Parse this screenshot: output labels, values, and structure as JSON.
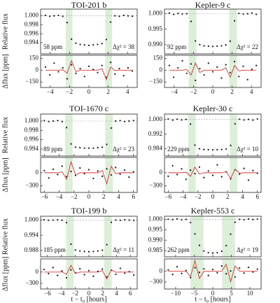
{
  "chart_data": [
    {
      "type": "transit",
      "title": "TOI-201 b",
      "ylabel": "Relative flux",
      "resid_ylabel": "Δflux [ppm]",
      "annotation_ppm": "58 ppm",
      "annotation_chi": "Δχ² = 38",
      "xlim": [
        -5,
        5
      ],
      "xticks": [
        {
          "value": -4,
          "label": "−4"
        },
        {
          "value": -2,
          "label": "−2"
        },
        0,
        2,
        4
      ],
      "ylim": [
        0.9915,
        1.0015
      ],
      "yticks": [
        {
          "value": 1,
          "label": "1.000"
        },
        0.998,
        0.996,
        0.994
      ],
      "resid_ylim": [
        -220,
        190
      ],
      "resid_yticks": [
        {
          "value": -150,
          "label": "−150"
        },
        0,
        150
      ],
      "shade": [
        [
          -2.4,
          -1.7
        ],
        [
          1.7,
          2.4
        ]
      ],
      "x": [
        -4.5,
        -4.05,
        -3.6,
        -3.15,
        -2.7,
        -2.25,
        -1.8,
        -1.35,
        -0.9,
        -0.45,
        0,
        0.45,
        0.9,
        1.35,
        1.8,
        2.25,
        2.7,
        3.15,
        3.6,
        4.05,
        4.5
      ],
      "flux": [
        1.0001,
        0.9999,
        1.0,
        1.0001,
        0.9999,
        0.9985,
        0.9948,
        0.9939,
        0.9936,
        0.9935,
        0.9934,
        0.9935,
        0.9936,
        0.9938,
        0.9947,
        0.9986,
        1.0,
        0.9999,
        1.0001,
        1.0,
        0.9999
      ],
      "residual": [
        40,
        -60,
        90,
        -20,
        30,
        -110,
        70,
        -40,
        20,
        -80,
        50,
        10,
        -30,
        60,
        -90,
        100,
        -50,
        20,
        -70,
        30,
        -10
      ],
      "model": [
        0,
        0,
        0,
        0,
        5,
        -40,
        120,
        -20,
        0,
        0,
        0,
        0,
        0,
        20,
        -120,
        40,
        -5,
        0,
        0,
        0,
        0
      ]
    },
    {
      "type": "transit",
      "title": "Kepler-9 c",
      "annotation_ppm": "92 ppm",
      "annotation_chi": "Δχ² = 22",
      "xlim": [
        -5,
        5
      ],
      "xticks": [
        {
          "value": -4,
          "label": "−4"
        },
        {
          "value": -2,
          "label": "−2"
        },
        0,
        2,
        4
      ],
      "ylim": [
        0.987,
        1.0015
      ],
      "yticks": [
        {
          "value": 1,
          "label": "1.000"
        },
        0.995,
        {
          "value": 0.99,
          "label": "0.990"
        }
      ],
      "resid_ylim": [
        -220,
        190
      ],
      "resid_yticks": [
        {
          "value": -150,
          "label": "−150"
        },
        0,
        150
      ],
      "shade": [
        [
          -2.5,
          -1.7
        ],
        [
          1.7,
          2.5
        ]
      ],
      "x": [
        -4.5,
        -4.05,
        -3.6,
        -3.15,
        -2.7,
        -2.25,
        -1.8,
        -1.35,
        -0.9,
        -0.45,
        0,
        0.45,
        0.9,
        1.35,
        1.8,
        2.25,
        2.7,
        3.15,
        3.6,
        4.05,
        4.5
      ],
      "flux": [
        1.0002,
        0.9998,
        1.0001,
        0.9999,
        1.0,
        0.9975,
        0.9912,
        0.99,
        0.9896,
        0.9895,
        0.9894,
        0.9895,
        0.9896,
        0.9899,
        0.9911,
        0.9977,
        1.0001,
        0.9999,
        1.0,
        1.0002,
        0.9998
      ],
      "residual": [
        60,
        -90,
        30,
        120,
        -40,
        80,
        -130,
        20,
        -60,
        90,
        -20,
        40,
        -100,
        70,
        -30,
        110,
        -80,
        50,
        -120,
        10,
        60
      ],
      "model": [
        0,
        0,
        0,
        0,
        10,
        -60,
        90,
        -30,
        0,
        0,
        0,
        0,
        0,
        30,
        -90,
        60,
        -10,
        0,
        0,
        0,
        0
      ]
    },
    {
      "type": "transit",
      "title": "TOI-1670 c",
      "ylabel": "Relative flux",
      "resid_ylabel": "Δflux [ppm]",
      "annotation_ppm": "89 ppm",
      "annotation_chi": "Δχ² = 23",
      "xlim": [
        -6.5,
        6.5
      ],
      "xticks": [
        {
          "value": -6,
          "label": "−6"
        },
        {
          "value": -4,
          "label": "−4"
        },
        {
          "value": -2,
          "label": "−2"
        },
        0,
        2,
        4,
        6
      ],
      "ylim": [
        0.9925,
        1.0015
      ],
      "yticks": [
        {
          "value": 1,
          "label": "1.000"
        },
        0.998,
        0.996,
        0.994
      ],
      "resid_ylim": [
        -450,
        350
      ],
      "resid_yticks": [
        {
          "value": -300,
          "label": "−300"
        },
        0
      ],
      "shade": [
        [
          -3.2,
          -2.2
        ],
        [
          2.2,
          3.2
        ]
      ],
      "x": [
        -6,
        -5.4,
        -4.8,
        -4.2,
        -3.6,
        -3,
        -2.4,
        -1.8,
        -1.2,
        -0.6,
        0,
        0.6,
        1.2,
        1.8,
        2.4,
        3,
        3.6,
        4.2,
        4.8,
        5.4,
        6
      ],
      "flux": [
        1.0001,
        0.9999,
        1.0,
        1.0001,
        0.9999,
        0.9986,
        0.9951,
        0.9944,
        0.9943,
        0.9942,
        0.9942,
        0.9942,
        0.9943,
        0.9944,
        0.995,
        0.9985,
        1.0,
        1.0001,
        0.9999,
        1.0,
        1.0001
      ],
      "residual": [
        50,
        -120,
        80,
        -40,
        150,
        -90,
        30,
        -60,
        110,
        -20,
        70,
        -130,
        40,
        -80,
        90,
        -50,
        120,
        -30,
        60,
        -100,
        20
      ],
      "model": [
        0,
        0,
        0,
        0,
        20,
        -150,
        250,
        -50,
        0,
        0,
        0,
        0,
        0,
        50,
        -250,
        150,
        -20,
        0,
        0,
        0,
        0
      ]
    },
    {
      "type": "transit",
      "title": "Kepler-30 c",
      "annotation_ppm": "229 ppm",
      "annotation_chi": "Δχ² = 10",
      "xlim": [
        -6.5,
        6.5
      ],
      "xticks": [
        {
          "value": -6,
          "label": "−6"
        },
        {
          "value": -4,
          "label": "−4"
        },
        {
          "value": -2,
          "label": "−2"
        },
        0,
        2,
        4,
        6
      ],
      "ylim": [
        0.98,
        1.003
      ],
      "yticks": [
        {
          "value": 1,
          "label": "1.000"
        },
        0.992,
        0.984
      ],
      "resid_ylim": [
        -450,
        350
      ],
      "resid_yticks": [
        {
          "value": -300,
          "label": "−300"
        },
        0
      ],
      "shade": [
        [
          -3.3,
          -2.3
        ],
        [
          2.3,
          3.3
        ]
      ],
      "x": [
        -6,
        -5.4,
        -4.8,
        -4.2,
        -3.6,
        -3,
        -2.4,
        -1.8,
        -1.2,
        -0.6,
        0,
        0.6,
        1.2,
        1.8,
        2.4,
        3,
        3.6,
        4.2,
        4.8,
        5.4,
        6
      ],
      "flux": [
        1.0003,
        0.9997,
        1.0002,
        0.9998,
        1.0001,
        0.9975,
        0.986,
        0.984,
        0.9836,
        0.9835,
        0.9834,
        0.9835,
        0.9836,
        0.9839,
        0.9858,
        0.9977,
        1.0002,
        0.9998,
        1.0001,
        0.9997,
        1.0003
      ],
      "residual": [
        -80,
        160,
        -40,
        90,
        -150,
        60,
        -20,
        130,
        -110,
        40,
        -60,
        180,
        -90,
        20,
        -140,
        70,
        -30,
        100,
        -170,
        50,
        -10
      ],
      "model": [
        0,
        0,
        0,
        0,
        10,
        -80,
        130,
        -30,
        0,
        0,
        0,
        0,
        0,
        30,
        -130,
        80,
        -10,
        0,
        0,
        0,
        0
      ]
    },
    {
      "type": "transit",
      "title": "TOI-199 b",
      "ylabel": "Relative flux",
      "resid_ylabel": "Δflux [ppm]",
      "xlabel": "t − t₀ [hours]",
      "annotation_ppm": "185 ppm",
      "annotation_chi": "Δχ² = 11",
      "xlim": [
        -7,
        7
      ],
      "xticks": [
        {
          "value": -6,
          "label": "−6"
        },
        {
          "value": -4,
          "label": "−4"
        },
        {
          "value": -2,
          "label": "−2"
        },
        0,
        2,
        4,
        6
      ],
      "ylim": [
        0.9855,
        1.0015
      ],
      "yticks": [
        {
          "value": 1,
          "label": "1.000"
        },
        0.994,
        0.988
      ],
      "resid_ylim": [
        -450,
        350
      ],
      "resid_yticks": [
        {
          "value": -300,
          "label": "−300"
        },
        0
      ],
      "shade": [
        [
          -3.3,
          -2.2
        ],
        [
          2.2,
          3.3
        ]
      ],
      "x": [
        -6.5,
        -5.85,
        -5.2,
        -4.55,
        -3.9,
        -3.25,
        -2.6,
        -1.95,
        -1.3,
        -0.65,
        0,
        0.65,
        1.3,
        1.95,
        2.6,
        3.25,
        3.9,
        4.55,
        5.2,
        5.85,
        6.5
      ],
      "flux": [
        1.0001,
        0.9999,
        1.0,
        1.0001,
        0.9999,
        0.999,
        0.9905,
        0.9882,
        0.9878,
        0.9876,
        0.9875,
        0.9876,
        0.9878,
        0.9881,
        0.9903,
        0.9991,
        1.0,
        0.9999,
        1.0001,
        1.0,
        0.9999
      ],
      "residual": [
        70,
        -40,
        120,
        -90,
        30,
        -150,
        60,
        -20,
        90,
        -70,
        40,
        -110,
        20,
        80,
        -130,
        50,
        -60,
        100,
        -30,
        10,
        -80
      ],
      "model": [
        0,
        0,
        0,
        0,
        5,
        -60,
        180,
        -40,
        0,
        0,
        0,
        0,
        0,
        40,
        -180,
        60,
        -5,
        0,
        0,
        0,
        0
      ]
    },
    {
      "type": "transit",
      "title": "Kepler-553 c",
      "xlabel": "t − t₀ [hours]",
      "annotation_ppm": "262 ppm",
      "annotation_chi": "Δχ² = 19",
      "xlim": [
        -13,
        13
      ],
      "xticks": [
        {
          "value": -10,
          "label": "−10"
        },
        {
          "value": -5,
          "label": "−5"
        },
        0,
        5,
        10
      ],
      "ylim": [
        0.982,
        1.0015
      ],
      "yticks": [
        {
          "value": 1,
          "label": "1.000"
        },
        0.995,
        {
          "value": 0.99,
          "label": "0.990"
        },
        0.985
      ],
      "resid_ylim": [
        -500,
        350
      ],
      "resid_yticks": [
        {
          "value": -300,
          "label": "−300"
        },
        0
      ],
      "shade": [
        [
          -6,
          -2.5
        ],
        [
          2.5,
          6
        ]
      ],
      "x": [
        -12,
        -10.8,
        -9.6,
        -8.4,
        -7.2,
        -6,
        -4.8,
        -3.6,
        -2.4,
        -1.2,
        0,
        1.2,
        2.4,
        3.6,
        4.8,
        6,
        7.2,
        8.4,
        9.6,
        10.8,
        12
      ],
      "flux": [
        1.0001,
        0.9999,
        1.0002,
        0.9998,
        1.0,
        0.9985,
        0.993,
        0.9875,
        0.9848,
        0.984,
        0.9838,
        0.984,
        0.9847,
        0.9874,
        0.9929,
        0.9986,
        1.0,
        0.9998,
        1.0002,
        0.9999,
        1.0001
      ],
      "residual": [
        40,
        -90,
        130,
        -60,
        20,
        -180,
        100,
        -30,
        70,
        -120,
        50,
        -40,
        150,
        -70,
        10,
        -160,
        90,
        -50,
        110,
        -20,
        60
      ],
      "model": [
        0,
        0,
        0,
        0,
        0,
        -150,
        300,
        -200,
        0,
        0,
        0,
        0,
        0,
        200,
        -300,
        150,
        0,
        0,
        0,
        0,
        0
      ]
    }
  ]
}
